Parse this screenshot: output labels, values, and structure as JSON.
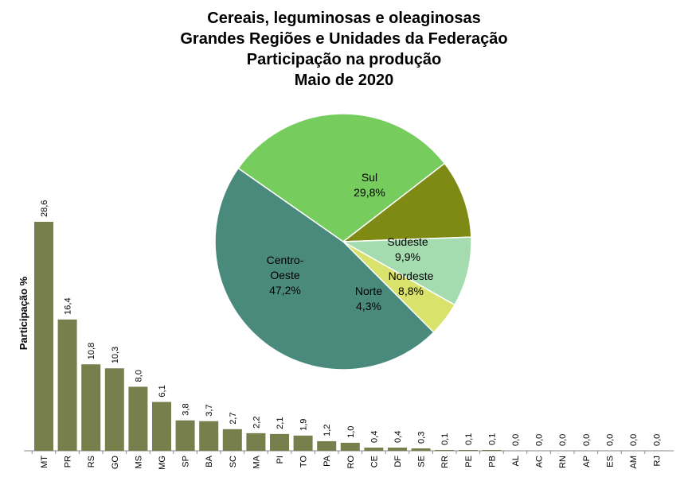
{
  "title_lines": [
    "Cereais, leguminosas  e oleaginosas",
    "Grandes Regiões e Unidades da Federação",
    "Participação na produção",
    "Maio de 2020"
  ],
  "colors": {
    "bar": "#77804c",
    "sul": "#77cc5e",
    "sudeste": "#7f8a14",
    "nordeste": "#a4dcb0",
    "norte": "#d9e36b",
    "centro_oeste": "#4a8a7c"
  },
  "chart_data": [
    {
      "type": "bar",
      "ylabel": "Participação %",
      "categories": [
        "MT",
        "PR",
        "RS",
        "GO",
        "MS",
        "MG",
        "SP",
        "BA",
        "SC",
        "MA",
        "PI",
        "TO",
        "PA",
        "RO",
        "CE",
        "DF",
        "SE",
        "RR",
        "PE",
        "PB",
        "AL",
        "AC",
        "RN",
        "AP",
        "ES",
        "AM",
        "RJ"
      ],
      "values": [
        28.6,
        16.4,
        10.8,
        10.3,
        8.0,
        6.1,
        3.8,
        3.7,
        2.7,
        2.2,
        2.1,
        1.9,
        1.2,
        1.0,
        0.4,
        0.4,
        0.3,
        0.1,
        0.1,
        0.1,
        0.0,
        0.0,
        0.0,
        0.0,
        0.0,
        0.0,
        0.0
      ],
      "value_labels": [
        "28,6",
        "16,4",
        "10,8",
        "10,3",
        "8,0",
        "6,1",
        "3,8",
        "3,7",
        "2,7",
        "2,2",
        "2,1",
        "1,9",
        "1,2",
        "1,0",
        "0,4",
        "0,4",
        "0,3",
        "0,1",
        "0,1",
        "0,1",
        "0,0",
        "0,0",
        "0,0",
        "0,0",
        "0,0",
        "0,0",
        "0,0"
      ],
      "ylim": [
        0,
        30
      ]
    },
    {
      "type": "pie",
      "slices": [
        {
          "key": "sul",
          "name": "Sul",
          "value": 29.8,
          "value_label": "29,8%"
        },
        {
          "key": "sudeste",
          "name": "Sudeste",
          "value": 9.9,
          "value_label": "9,9%"
        },
        {
          "key": "nordeste",
          "name": "Nordeste",
          "value": 8.8,
          "value_label": "8,8%"
        },
        {
          "key": "norte",
          "name": "Norte",
          "value": 4.3,
          "value_label": "4,3%"
        },
        {
          "key": "centro_oeste",
          "name": "Centro-Oeste",
          "name_lines": [
            "Centro-",
            "Oeste"
          ],
          "value": 47.2,
          "value_label": "47,2%"
        }
      ]
    }
  ]
}
